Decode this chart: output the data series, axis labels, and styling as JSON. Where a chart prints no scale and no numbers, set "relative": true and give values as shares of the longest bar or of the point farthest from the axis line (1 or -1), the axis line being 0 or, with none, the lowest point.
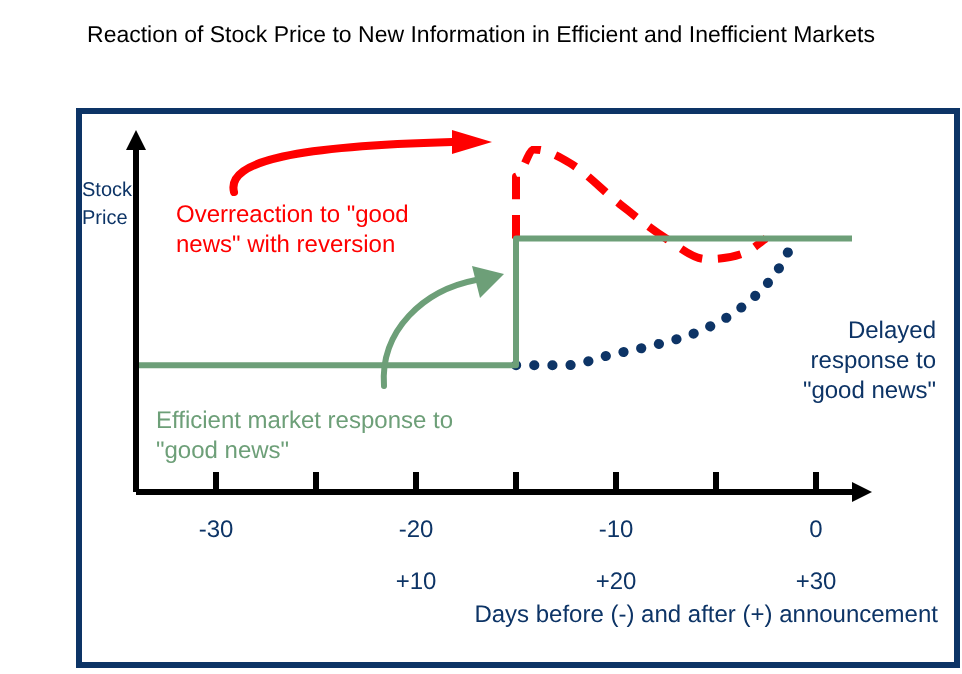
{
  "chart_data": {
    "type": "line",
    "title": "Reaction of Stock Price to New Information in Efficient and Inefficient Markets",
    "xlabel": "Days before (-) and after (+) announcement",
    "ylabel": "Stock Price",
    "relative": true,
    "xlim": [
      -34,
      2
    ],
    "xticks": [
      -30,
      {
        "value": -25,
        "label": null
      },
      -20,
      {
        "value": -15,
        "label": null
      },
      -10,
      {
        "value": -5,
        "label": null
      },
      0
    ],
    "x2lim": [
      -4,
      32
    ],
    "x2ticks": [
      {
        "value": 10,
        "label": "+10"
      },
      {
        "value": 20,
        "label": "+20"
      },
      {
        "value": 30,
        "label": "+30"
      }
    ],
    "legend": false,
    "marker": "none",
    "series": [
      {
        "name": "Efficient market response to \"good news\"",
        "color": "#6d9f78",
        "line_style": "solid",
        "x": [
          -34,
          -15,
          -15,
          1.8
        ],
        "values": [
          0.37,
          0.37,
          0.74,
          0.74
        ]
      },
      {
        "name": "Overreaction to \"good news\" with reversion",
        "color": "#ff0000",
        "line_style": "dashed",
        "x": [
          -15,
          -15,
          -14.1,
          -12.3,
          -9.8,
          -7.5,
          -5.5,
          -3.5,
          -2.5
        ],
        "values": [
          0.74,
          0.92,
          1.0,
          0.96,
          0.84,
          0.74,
          0.68,
          0.7,
          0.74
        ]
      },
      {
        "name": "Delayed response to \"good news\"",
        "color": "#0d3466",
        "line_style": "dotted",
        "x": [
          -15,
          -12.5,
          -10.3,
          -8,
          -5.8,
          -3.7,
          -2,
          -1.4
        ],
        "values": [
          0.37,
          0.37,
          0.4,
          0.43,
          0.47,
          0.54,
          0.64,
          0.7
        ]
      }
    ]
  }
}
